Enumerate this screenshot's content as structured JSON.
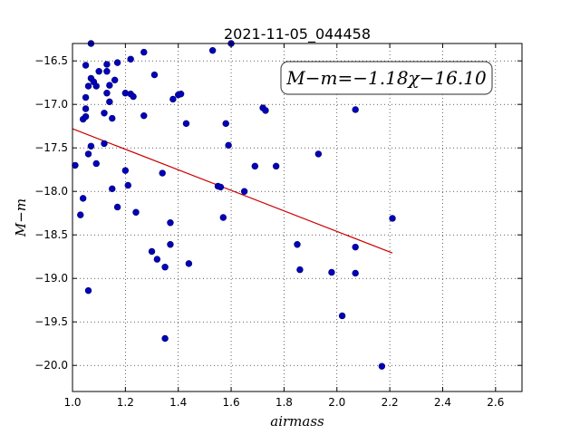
{
  "chart_data": {
    "type": "scatter",
    "title": "2021-11-05_044458",
    "xlabel": "airmass",
    "ylabel": "M−m",
    "xlim": [
      1.0,
      2.7
    ],
    "ylim": [
      -20.3,
      -16.3
    ],
    "x_ticks": [
      1.0,
      1.2,
      1.4,
      1.6,
      1.8,
      2.0,
      2.2,
      2.4,
      2.6
    ],
    "x_tick_labels": [
      "1.0",
      "1.2",
      "1.4",
      "1.6",
      "1.8",
      "2.0",
      "2.2",
      "2.4",
      "2.6"
    ],
    "y_ticks": [
      -16.5,
      -17.0,
      -17.5,
      -18.0,
      -18.5,
      -19.0,
      -19.5,
      -20.0
    ],
    "y_tick_labels": [
      "−16.5",
      "−17.0",
      "−17.5",
      "−18.0",
      "−18.5",
      "−19.0",
      "−19.5",
      "−20.0"
    ],
    "grid": true,
    "annotation": "M−m=−1.18χ−16.10",
    "points": [
      {
        "x": 1.01,
        "y": -17.7
      },
      {
        "x": 1.03,
        "y": -18.27
      },
      {
        "x": 1.04,
        "y": -18.08
      },
      {
        "x": 1.04,
        "y": -17.17
      },
      {
        "x": 1.05,
        "y": -17.14
      },
      {
        "x": 1.05,
        "y": -17.05
      },
      {
        "x": 1.05,
        "y": -16.92
      },
      {
        "x": 1.05,
        "y": -16.55
      },
      {
        "x": 1.06,
        "y": -16.79
      },
      {
        "x": 1.06,
        "y": -17.57
      },
      {
        "x": 1.06,
        "y": -19.14
      },
      {
        "x": 1.07,
        "y": -16.7
      },
      {
        "x": 1.07,
        "y": -17.48
      },
      {
        "x": 1.07,
        "y": -16.3
      },
      {
        "x": 1.08,
        "y": -16.74
      },
      {
        "x": 1.09,
        "y": -17.68
      },
      {
        "x": 1.09,
        "y": -16.79
      },
      {
        "x": 1.1,
        "y": -16.62
      },
      {
        "x": 1.12,
        "y": -17.1
      },
      {
        "x": 1.12,
        "y": -17.45
      },
      {
        "x": 1.13,
        "y": -16.54
      },
      {
        "x": 1.13,
        "y": -16.62
      },
      {
        "x": 1.13,
        "y": -16.87
      },
      {
        "x": 1.14,
        "y": -16.97
      },
      {
        "x": 1.14,
        "y": -16.78
      },
      {
        "x": 1.15,
        "y": -17.16
      },
      {
        "x": 1.15,
        "y": -17.97
      },
      {
        "x": 1.16,
        "y": -16.72
      },
      {
        "x": 1.17,
        "y": -18.18
      },
      {
        "x": 1.17,
        "y": -16.52
      },
      {
        "x": 1.2,
        "y": -17.76
      },
      {
        "x": 1.2,
        "y": -16.87
      },
      {
        "x": 1.21,
        "y": -17.93
      },
      {
        "x": 1.22,
        "y": -16.88
      },
      {
        "x": 1.22,
        "y": -16.48
      },
      {
        "x": 1.23,
        "y": -16.91
      },
      {
        "x": 1.24,
        "y": -18.24
      },
      {
        "x": 1.27,
        "y": -17.13
      },
      {
        "x": 1.27,
        "y": -16.4
      },
      {
        "x": 1.3,
        "y": -18.69
      },
      {
        "x": 1.31,
        "y": -16.66
      },
      {
        "x": 1.32,
        "y": -18.78
      },
      {
        "x": 1.34,
        "y": -17.79
      },
      {
        "x": 1.35,
        "y": -19.69
      },
      {
        "x": 1.35,
        "y": -18.87
      },
      {
        "x": 1.37,
        "y": -18.61
      },
      {
        "x": 1.37,
        "y": -18.36
      },
      {
        "x": 1.38,
        "y": -16.94
      },
      {
        "x": 1.4,
        "y": -16.89
      },
      {
        "x": 1.41,
        "y": -16.88
      },
      {
        "x": 1.43,
        "y": -17.22
      },
      {
        "x": 1.44,
        "y": -18.83
      },
      {
        "x": 1.53,
        "y": -16.38
      },
      {
        "x": 1.55,
        "y": -17.94
      },
      {
        "x": 1.56,
        "y": -17.95
      },
      {
        "x": 1.57,
        "y": -18.3
      },
      {
        "x": 1.58,
        "y": -17.22
      },
      {
        "x": 1.59,
        "y": -17.47
      },
      {
        "x": 1.6,
        "y": -16.3
      },
      {
        "x": 1.65,
        "y": -18.0
      },
      {
        "x": 1.69,
        "y": -17.71
      },
      {
        "x": 1.72,
        "y": -17.04
      },
      {
        "x": 1.73,
        "y": -17.07
      },
      {
        "x": 1.77,
        "y": -17.71
      },
      {
        "x": 1.85,
        "y": -18.61
      },
      {
        "x": 1.86,
        "y": -18.9
      },
      {
        "x": 1.93,
        "y": -17.57
      },
      {
        "x": 1.98,
        "y": -18.93
      },
      {
        "x": 2.02,
        "y": -19.43
      },
      {
        "x": 2.07,
        "y": -18.64
      },
      {
        "x": 2.07,
        "y": -18.94
      },
      {
        "x": 2.07,
        "y": -17.06
      },
      {
        "x": 2.17,
        "y": -20.01
      },
      {
        "x": 2.21,
        "y": -18.31
      }
    ],
    "fit_line": {
      "x_start": 1.0,
      "x_end": 2.21,
      "slope": -1.18,
      "intercept": -16.1,
      "color": "#cc0000"
    },
    "marker_color": "#0000bb",
    "marker_edge_color": "#00006a"
  }
}
